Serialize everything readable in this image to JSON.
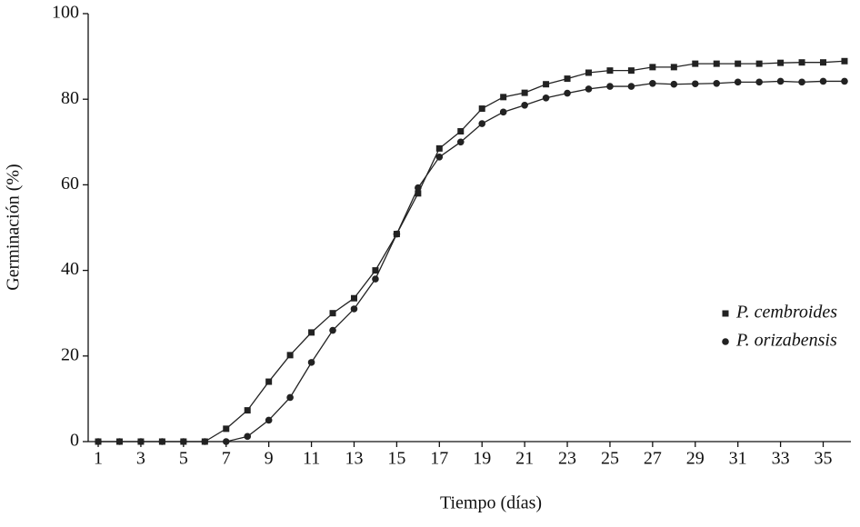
{
  "chart_data": {
    "type": "line",
    "x_label": "Tiempo (días)",
    "y_label": "Germinación (%)",
    "x": [
      1,
      2,
      3,
      4,
      5,
      6,
      7,
      8,
      9,
      10,
      11,
      12,
      13,
      14,
      15,
      16,
      17,
      18,
      19,
      20,
      21,
      22,
      23,
      24,
      25,
      26,
      27,
      28,
      29,
      30,
      31,
      32,
      33,
      34,
      35,
      36
    ],
    "series": [
      {
        "name": "P. cembroides",
        "color": "#222222",
        "marker": "square",
        "values": [
          0,
          0,
          0,
          0,
          0,
          0,
          3,
          7.3,
          14,
          20.2,
          25.5,
          30,
          33.5,
          40,
          48.5,
          58,
          68.5,
          72.5,
          77.8,
          80.5,
          81.5,
          83.5,
          84.8,
          86.2,
          86.7,
          86.7,
          87.5,
          87.5,
          88.3,
          88.3,
          88.3,
          88.3,
          88.5,
          88.6,
          88.6,
          88.9
        ]
      },
      {
        "name": "P. orizabensis",
        "color": "#222222",
        "marker": "circle",
        "values": [
          0,
          0,
          0,
          0,
          0,
          0,
          0,
          1.2,
          5,
          10.3,
          18.5,
          26,
          31,
          38,
          48.5,
          59.3,
          66.5,
          70,
          74.3,
          77,
          78.6,
          80.3,
          81.4,
          82.4,
          83,
          83,
          83.7,
          83.5,
          83.6,
          83.7,
          84,
          84,
          84.2,
          84,
          84.2,
          84.2
        ]
      }
    ],
    "xlim": [
      0.53,
      36.3
    ],
    "xticks": [
      1,
      3,
      5,
      7,
      9,
      11,
      13,
      15,
      17,
      19,
      21,
      23,
      25,
      27,
      29,
      31,
      33,
      35
    ],
    "ylim": [
      0,
      100
    ],
    "yticks": [
      0,
      20,
      40,
      60,
      80,
      100
    ],
    "legend": "right"
  }
}
